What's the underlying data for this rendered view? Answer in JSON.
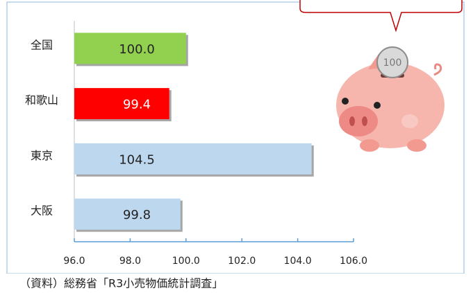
{
  "chart_data": {
    "type": "hbar",
    "categories": [
      "全国",
      "和歌山",
      "東京",
      "大阪"
    ],
    "values": [
      100.0,
      99.4,
      104.5,
      99.8
    ],
    "value_labels": [
      "100.0",
      "99.4",
      "104.5",
      "99.8"
    ],
    "colors": [
      "#92d050",
      "#ff0000",
      "#bdd7ee",
      "#bdd7ee"
    ],
    "xlim": [
      96,
      106
    ],
    "xticks": [
      {
        "value": 96,
        "label": "96.0"
      },
      {
        "value": 98,
        "label": "98.0"
      },
      {
        "value": 100,
        "label": "100.0"
      },
      {
        "value": 102,
        "label": "102.0"
      },
      {
        "value": 104,
        "label": "104.0"
      },
      {
        "value": 106,
        "label": "106.0"
      }
    ],
    "source": "（資料）総務省「R3小売物価統計調査」",
    "coin_text": "100"
  }
}
